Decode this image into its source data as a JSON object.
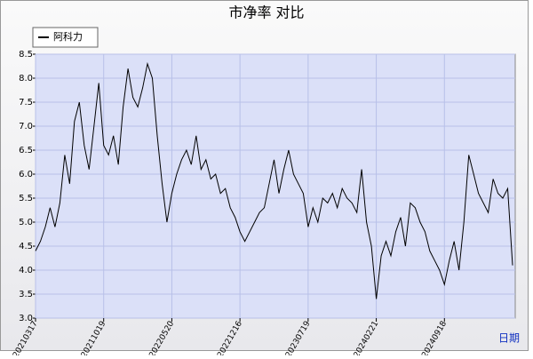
{
  "chart_data": {
    "type": "line",
    "title": "市净率  对比",
    "x_label": "日期",
    "categories": [
      "20210317",
      null,
      null,
      null,
      null,
      null,
      null,
      null,
      null,
      null,
      null,
      null,
      null,
      null,
      "20211019",
      null,
      null,
      null,
      null,
      null,
      null,
      null,
      null,
      null,
      null,
      null,
      null,
      null,
      "20220520",
      null,
      null,
      null,
      null,
      null,
      null,
      null,
      null,
      null,
      null,
      null,
      null,
      null,
      "20221216",
      null,
      null,
      null,
      null,
      null,
      null,
      null,
      null,
      null,
      null,
      null,
      null,
      null,
      "20230719",
      null,
      null,
      null,
      null,
      null,
      null,
      null,
      null,
      null,
      null,
      null,
      null,
      null,
      "20240221",
      null,
      null,
      null,
      null,
      null,
      null,
      null,
      null,
      null,
      null,
      null,
      null,
      null,
      "20240918",
      null,
      null,
      null,
      null,
      null,
      null,
      null,
      null,
      null,
      null,
      null,
      null,
      null,
      null
    ],
    "series": [
      {
        "name": "阿科力",
        "color": "#000000",
        "values": [
          4.4,
          4.6,
          4.9,
          5.3,
          4.9,
          5.4,
          6.4,
          5.8,
          7.1,
          7.5,
          6.6,
          6.1,
          7.0,
          7.9,
          6.6,
          6.4,
          6.8,
          6.2,
          7.4,
          8.2,
          7.6,
          7.4,
          7.8,
          8.3,
          8.0,
          6.8,
          5.8,
          5.0,
          5.6,
          6.0,
          6.3,
          6.5,
          6.2,
          6.8,
          6.1,
          6.3,
          5.9,
          6.0,
          5.6,
          5.7,
          5.3,
          5.1,
          4.8,
          4.6,
          4.8,
          5.0,
          5.2,
          5.3,
          5.8,
          6.3,
          5.6,
          6.1,
          6.5,
          6.0,
          5.8,
          5.6,
          4.9,
          5.3,
          5.0,
          5.5,
          5.4,
          5.6,
          5.3,
          5.7,
          5.5,
          5.4,
          5.2,
          6.1,
          5.0,
          4.5,
          3.4,
          4.3,
          4.6,
          4.3,
          4.8,
          5.1,
          4.5,
          5.4,
          5.3,
          5.0,
          4.8,
          4.4,
          4.2,
          4.0,
          3.7,
          4.2,
          4.6,
          4.0,
          5.0,
          6.4,
          6.0,
          5.6,
          5.4,
          5.2,
          5.9,
          5.6,
          5.5,
          5.7,
          4.1
        ]
      }
    ],
    "ylim": [
      3,
      8.5
    ],
    "yticks": [
      {
        "value": 3,
        "label": "3.0"
      },
      3.5,
      {
        "value": 4,
        "label": "4.0"
      },
      4.5,
      {
        "value": 5,
        "label": "5.0"
      },
      5.5,
      {
        "value": 6,
        "label": "6.0"
      },
      6.5,
      {
        "value": 7,
        "label": "7.0"
      },
      7.5,
      {
        "value": 8,
        "label": "8.0"
      },
      8.5
    ],
    "grid": true
  }
}
